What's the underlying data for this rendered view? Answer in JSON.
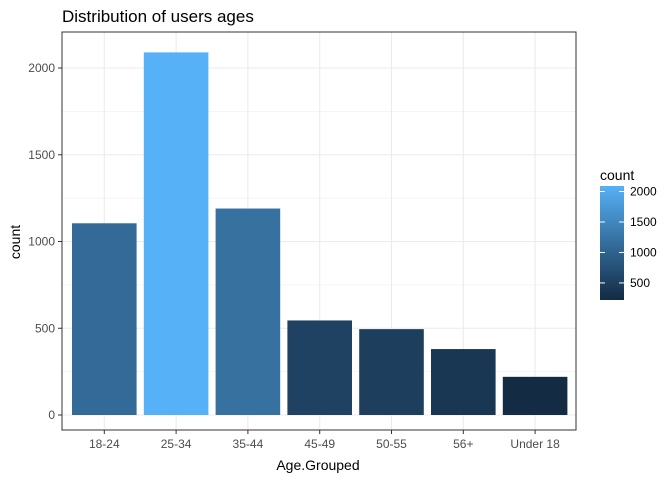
{
  "chart_data": {
    "type": "bar",
    "title": "Distribution of users ages",
    "xlabel": "Age.Grouped",
    "ylabel": "count",
    "categories": [
      "18-24",
      "25-34",
      "35-44",
      "45-49",
      "50-55",
      "56+",
      "Under 18"
    ],
    "values": [
      1105,
      2090,
      1190,
      545,
      495,
      380,
      220
    ],
    "ylim": [
      0,
      2225
    ],
    "yticks": [
      0,
      500,
      1000,
      1500,
      2000
    ],
    "grid": true,
    "legend": {
      "title": "count",
      "placement": "right",
      "type": "colorbar",
      "ticks": [
        500,
        1000,
        1500,
        2000
      ],
      "range": [
        220,
        2090
      ],
      "colors": {
        "low": "#132B43",
        "high": "#56B1F7"
      }
    },
    "colors": {
      "panel_border": "#333333",
      "grid": "#ebebeb"
    }
  }
}
